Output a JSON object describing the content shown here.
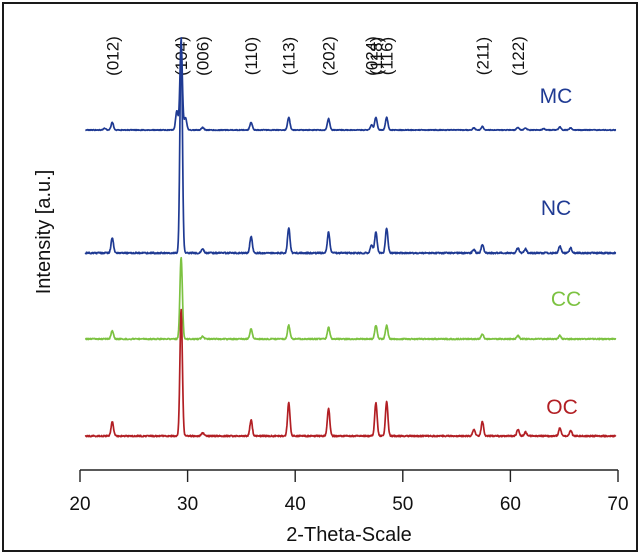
{
  "chart_data": {
    "type": "line",
    "title": "",
    "xlabel": "2-Theta-Scale",
    "ylabel": "Intensity [a.u.]",
    "xlim": [
      20,
      70
    ],
    "xticks": [
      20,
      30,
      40,
      50,
      60,
      70
    ],
    "y_ticks_shown": false,
    "grid": false,
    "legend": "labels placed at right end of each trace",
    "peak_labels": [
      {
        "label": "(012)",
        "x": 23.0
      },
      {
        "label": "(104)",
        "x": 29.4
      },
      {
        "label": "(006)",
        "x": 31.4
      },
      {
        "label": "(110)",
        "x": 35.9
      },
      {
        "label": "(113)",
        "x": 39.4
      },
      {
        "label": "(202)",
        "x": 43.1
      },
      {
        "label": "(024)",
        "x": 47.1
      },
      {
        "label": "(118)",
        "x": 47.5
      },
      {
        "label": "(116)",
        "x": 48.5
      },
      {
        "label": "(211)",
        "x": 57.4
      },
      {
        "label": "(122)",
        "x": 60.7
      }
    ],
    "series": [
      {
        "name": "MC",
        "color": "#1f3a93",
        "baseline": 0.35,
        "peaks": [
          [
            22.3,
            0.04
          ],
          [
            23.0,
            0.18
          ],
          [
            29.0,
            0.45
          ],
          [
            29.4,
            2.05
          ],
          [
            29.8,
            0.3
          ],
          [
            31.4,
            0.06
          ],
          [
            35.9,
            0.18
          ],
          [
            39.4,
            0.3
          ],
          [
            43.1,
            0.27
          ],
          [
            47.1,
            0.12
          ],
          [
            47.5,
            0.3
          ],
          [
            48.5,
            0.3
          ],
          [
            56.6,
            0.05
          ],
          [
            57.4,
            0.08
          ],
          [
            60.7,
            0.06
          ],
          [
            61.4,
            0.05
          ],
          [
            63.1,
            0.03
          ],
          [
            64.6,
            0.07
          ],
          [
            65.6,
            0.05
          ]
        ]
      },
      {
        "name": "NC",
        "color": "#1f3a93",
        "baseline": 0.0,
        "peaks": [
          [
            23.0,
            0.18
          ],
          [
            29.4,
            2.6
          ],
          [
            31.4,
            0.05
          ],
          [
            35.9,
            0.2
          ],
          [
            39.4,
            0.3
          ],
          [
            43.1,
            0.25
          ],
          [
            47.1,
            0.1
          ],
          [
            47.5,
            0.25
          ],
          [
            48.5,
            0.3
          ],
          [
            56.6,
            0.04
          ],
          [
            57.4,
            0.1
          ],
          [
            60.7,
            0.06
          ],
          [
            61.4,
            0.05
          ],
          [
            64.6,
            0.08
          ],
          [
            65.6,
            0.06
          ]
        ]
      },
      {
        "name": "CC",
        "color": "#7cc241",
        "baseline": 0.0,
        "peaks": [
          [
            23.0,
            0.12
          ],
          [
            29.4,
            1.2
          ],
          [
            31.4,
            0.04
          ],
          [
            35.9,
            0.15
          ],
          [
            39.4,
            0.2
          ],
          [
            43.1,
            0.17
          ],
          [
            47.5,
            0.2
          ],
          [
            48.5,
            0.2
          ],
          [
            57.4,
            0.07
          ],
          [
            60.7,
            0.05
          ],
          [
            64.6,
            0.05
          ]
        ]
      },
      {
        "name": "OC",
        "color": "#b21f24",
        "baseline": 0.0,
        "peaks": [
          [
            23.0,
            0.18
          ],
          [
            29.4,
            1.6
          ],
          [
            31.4,
            0.04
          ],
          [
            35.9,
            0.2
          ],
          [
            39.4,
            0.42
          ],
          [
            43.1,
            0.35
          ],
          [
            47.5,
            0.42
          ],
          [
            48.5,
            0.44
          ],
          [
            56.6,
            0.08
          ],
          [
            57.4,
            0.18
          ],
          [
            60.7,
            0.08
          ],
          [
            61.4,
            0.05
          ],
          [
            64.6,
            0.1
          ],
          [
            65.6,
            0.07
          ]
        ]
      }
    ]
  }
}
